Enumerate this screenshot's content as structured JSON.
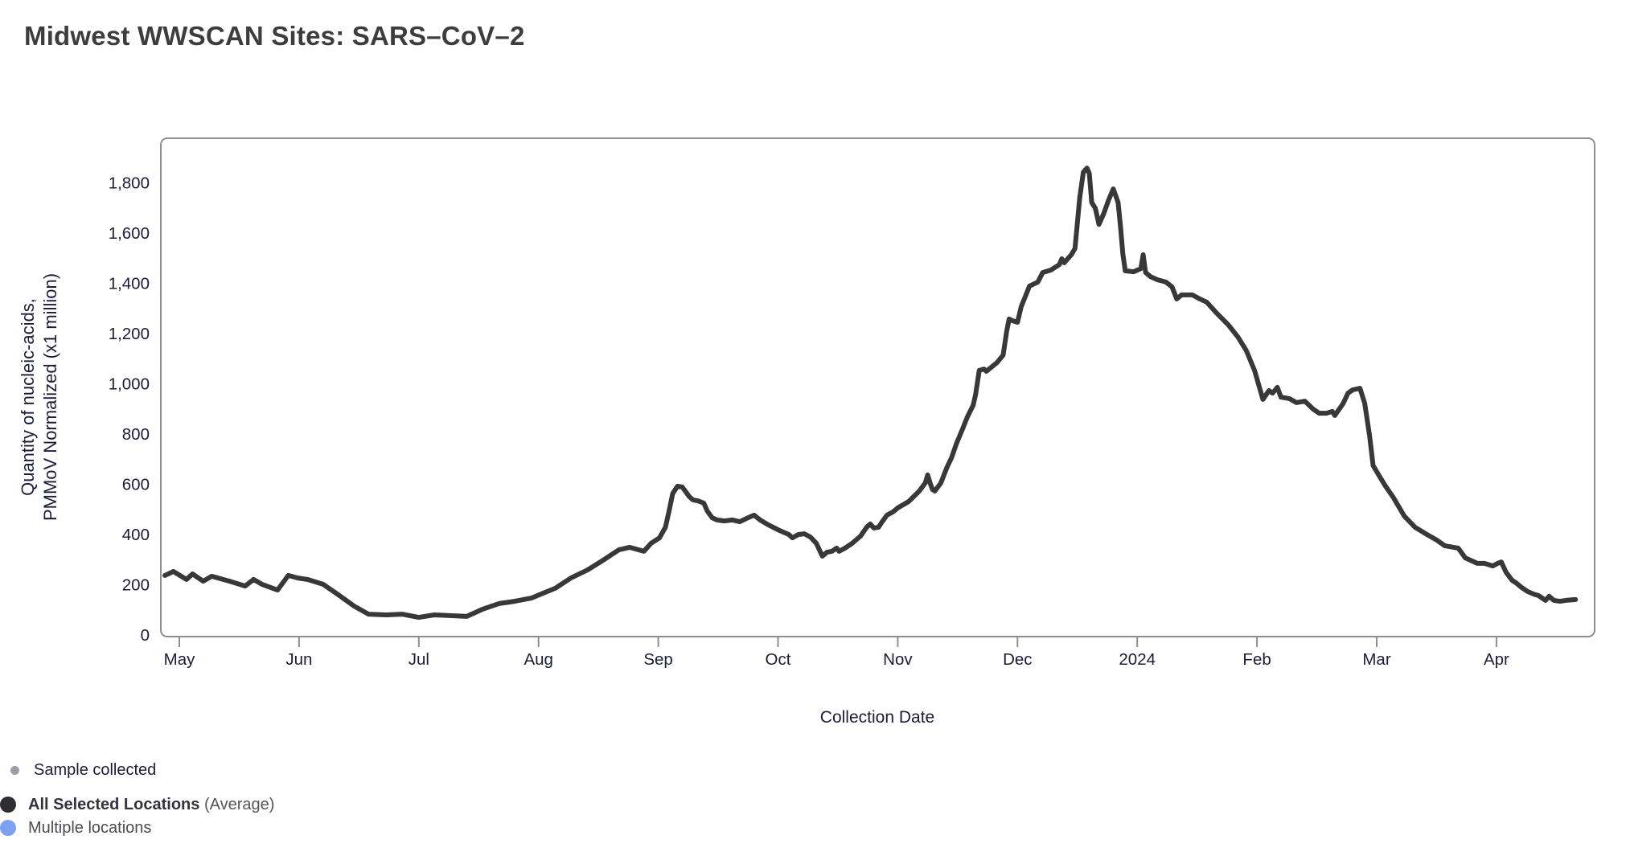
{
  "title": "Midwest WWSCAN Sites: SARS–CoV–2",
  "legend": {
    "sample_collected": "Sample collected",
    "all_selected": "All Selected Locations",
    "average_suffix": "(Average)",
    "multiple_locations": "Multiple locations"
  },
  "colors": {
    "line": "#383838",
    "plot_border": "#8e8e8e",
    "tick_text": "#1c1c38",
    "title_text": "#3d3d40",
    "sample_dot": "#9aa0a8",
    "average_dot": "#2d2d32",
    "multiple_locations_dot": "#7da1f1",
    "background": "#ffffff"
  },
  "chart_data": {
    "type": "line",
    "title": "Midwest WWSCAN Sites: SARS–CoV–2",
    "xlabel": "Collection Date",
    "ylabel_line1": "Quantity of nucleic-acids,",
    "ylabel_line2": "PMMoV Normalized (x1 million)",
    "x_ticks": [
      "May",
      "Jun",
      "Jul",
      "Aug",
      "Sep",
      "Oct",
      "Nov",
      "Dec",
      "2024",
      "Feb",
      "Mar",
      "Apr"
    ],
    "y_ticks": [
      {
        "value": 0,
        "label": "0"
      },
      {
        "value": 200,
        "label": "200"
      },
      {
        "value": 400,
        "label": "400"
      },
      {
        "value": 600,
        "label": "600"
      },
      {
        "value": 800,
        "label": "800"
      },
      {
        "value": 1000,
        "label": "1,000"
      },
      {
        "value": 1200,
        "label": "1,200"
      },
      {
        "value": 1400,
        "label": "1,400"
      },
      {
        "value": 1600,
        "label": "1,600"
      },
      {
        "value": 1800,
        "label": "1,800"
      }
    ],
    "ylim": [
      0,
      1980
    ],
    "grid": false,
    "legend_position": "bottom-left",
    "x_unit": "months since May tick (May 2023 = 0, Apr 2024 = 11)",
    "series": [
      {
        "name": "All Selected Locations (Average)",
        "color": "#383838",
        "points": [
          [
            -0.12,
            237
          ],
          [
            -0.05,
            253
          ],
          [
            0.06,
            221
          ],
          [
            0.11,
            243
          ],
          [
            0.2,
            214
          ],
          [
            0.27,
            234
          ],
          [
            0.42,
            214
          ],
          [
            0.55,
            195
          ],
          [
            0.62,
            221
          ],
          [
            0.69,
            202
          ],
          [
            0.82,
            179
          ],
          [
            0.91,
            237
          ],
          [
            0.99,
            227
          ],
          [
            1.07,
            221
          ],
          [
            1.2,
            202
          ],
          [
            1.32,
            163
          ],
          [
            1.46,
            115
          ],
          [
            1.58,
            83
          ],
          [
            1.73,
            80
          ],
          [
            1.86,
            83
          ],
          [
            2.0,
            70
          ],
          [
            2.13,
            80
          ],
          [
            2.26,
            77
          ],
          [
            2.4,
            74
          ],
          [
            2.53,
            102
          ],
          [
            2.67,
            125
          ],
          [
            2.8,
            134
          ],
          [
            2.94,
            147
          ],
          [
            3.02,
            163
          ],
          [
            3.14,
            186
          ],
          [
            3.27,
            227
          ],
          [
            3.41,
            259
          ],
          [
            3.54,
            298
          ],
          [
            3.67,
            339
          ],
          [
            3.76,
            349
          ],
          [
            3.88,
            333
          ],
          [
            3.94,
            365
          ],
          [
            4.01,
            387
          ],
          [
            4.06,
            429
          ],
          [
            4.09,
            493
          ],
          [
            4.12,
            563
          ],
          [
            4.16,
            592
          ],
          [
            4.2,
            589
          ],
          [
            4.23,
            570
          ],
          [
            4.26,
            550
          ],
          [
            4.29,
            538
          ],
          [
            4.33,
            534
          ],
          [
            4.38,
            525
          ],
          [
            4.41,
            493
          ],
          [
            4.45,
            467
          ],
          [
            4.49,
            458
          ],
          [
            4.55,
            454
          ],
          [
            4.62,
            458
          ],
          [
            4.68,
            451
          ],
          [
            4.75,
            467
          ],
          [
            4.8,
            477
          ],
          [
            4.85,
            458
          ],
          [
            4.92,
            438
          ],
          [
            5.0,
            419
          ],
          [
            5.09,
            400
          ],
          [
            5.12,
            387
          ],
          [
            5.17,
            400
          ],
          [
            5.22,
            403
          ],
          [
            5.27,
            390
          ],
          [
            5.32,
            365
          ],
          [
            5.37,
            314
          ],
          [
            5.41,
            330
          ],
          [
            5.45,
            333
          ],
          [
            5.49,
            346
          ],
          [
            5.51,
            333
          ],
          [
            5.56,
            346
          ],
          [
            5.62,
            365
          ],
          [
            5.69,
            394
          ],
          [
            5.74,
            429
          ],
          [
            5.77,
            442
          ],
          [
            5.8,
            426
          ],
          [
            5.84,
            429
          ],
          [
            5.87,
            451
          ],
          [
            5.91,
            477
          ],
          [
            5.96,
            490
          ],
          [
            6.0,
            506
          ],
          [
            6.09,
            531
          ],
          [
            6.18,
            573
          ],
          [
            6.23,
            605
          ],
          [
            6.25,
            637
          ],
          [
            6.27,
            605
          ],
          [
            6.29,
            579
          ],
          [
            6.31,
            573
          ],
          [
            6.36,
            605
          ],
          [
            6.41,
            666
          ],
          [
            6.45,
            707
          ],
          [
            6.49,
            762
          ],
          [
            6.54,
            819
          ],
          [
            6.58,
            867
          ],
          [
            6.63,
            915
          ],
          [
            6.65,
            957
          ],
          [
            6.68,
            1053
          ],
          [
            6.72,
            1059
          ],
          [
            6.74,
            1050
          ],
          [
            6.83,
            1085
          ],
          [
            6.88,
            1114
          ],
          [
            6.91,
            1210
          ],
          [
            6.93,
            1258
          ],
          [
            6.96,
            1251
          ],
          [
            7.0,
            1245
          ],
          [
            7.03,
            1306
          ],
          [
            7.1,
            1389
          ],
          [
            7.17,
            1405
          ],
          [
            7.21,
            1443
          ],
          [
            7.28,
            1453
          ],
          [
            7.35,
            1475
          ],
          [
            7.37,
            1498
          ],
          [
            7.39,
            1482
          ],
          [
            7.45,
            1514
          ],
          [
            7.48,
            1539
          ],
          [
            7.52,
            1741
          ],
          [
            7.55,
            1843
          ],
          [
            7.58,
            1859
          ],
          [
            7.6,
            1837
          ],
          [
            7.62,
            1722
          ],
          [
            7.65,
            1699
          ],
          [
            7.68,
            1635
          ],
          [
            7.72,
            1677
          ],
          [
            7.76,
            1731
          ],
          [
            7.8,
            1776
          ],
          [
            7.84,
            1722
          ],
          [
            7.86,
            1626
          ],
          [
            7.88,
            1517
          ],
          [
            7.9,
            1450
          ],
          [
            7.97,
            1446
          ],
          [
            8.03,
            1459
          ],
          [
            8.05,
            1514
          ],
          [
            8.07,
            1443
          ],
          [
            8.11,
            1427
          ],
          [
            8.17,
            1414
          ],
          [
            8.24,
            1405
          ],
          [
            8.29,
            1386
          ],
          [
            8.33,
            1338
          ],
          [
            8.37,
            1354
          ],
          [
            8.46,
            1354
          ],
          [
            8.51,
            1341
          ],
          [
            8.58,
            1325
          ],
          [
            8.66,
            1283
          ],
          [
            8.76,
            1235
          ],
          [
            8.84,
            1187
          ],
          [
            8.91,
            1133
          ],
          [
            8.98,
            1053
          ],
          [
            9.05,
            938
          ],
          [
            9.1,
            973
          ],
          [
            9.13,
            963
          ],
          [
            9.17,
            986
          ],
          [
            9.2,
            947
          ],
          [
            9.27,
            941
          ],
          [
            9.33,
            925
          ],
          [
            9.4,
            931
          ],
          [
            9.47,
            899
          ],
          [
            9.52,
            883
          ],
          [
            9.58,
            883
          ],
          [
            9.63,
            890
          ],
          [
            9.65,
            874
          ],
          [
            9.72,
            922
          ],
          [
            9.76,
            963
          ],
          [
            9.8,
            976
          ],
          [
            9.86,
            982
          ],
          [
            9.9,
            922
          ],
          [
            9.94,
            794
          ],
          [
            9.97,
            675
          ],
          [
            10.02,
            634
          ],
          [
            10.07,
            595
          ],
          [
            10.14,
            547
          ],
          [
            10.23,
            474
          ],
          [
            10.32,
            429
          ],
          [
            10.41,
            403
          ],
          [
            10.5,
            378
          ],
          [
            10.57,
            355
          ],
          [
            10.68,
            346
          ],
          [
            10.74,
            307
          ],
          [
            10.84,
            285
          ],
          [
            10.9,
            285
          ],
          [
            10.97,
            275
          ],
          [
            11.01,
            285
          ],
          [
            11.04,
            291
          ],
          [
            11.08,
            250
          ],
          [
            11.13,
            218
          ],
          [
            11.17,
            205
          ],
          [
            11.21,
            189
          ],
          [
            11.26,
            173
          ],
          [
            11.31,
            163
          ],
          [
            11.35,
            157
          ],
          [
            11.41,
            138
          ],
          [
            11.44,
            154
          ],
          [
            11.48,
            138
          ],
          [
            11.53,
            134
          ],
          [
            11.58,
            138
          ],
          [
            11.66,
            141
          ]
        ]
      }
    ]
  }
}
